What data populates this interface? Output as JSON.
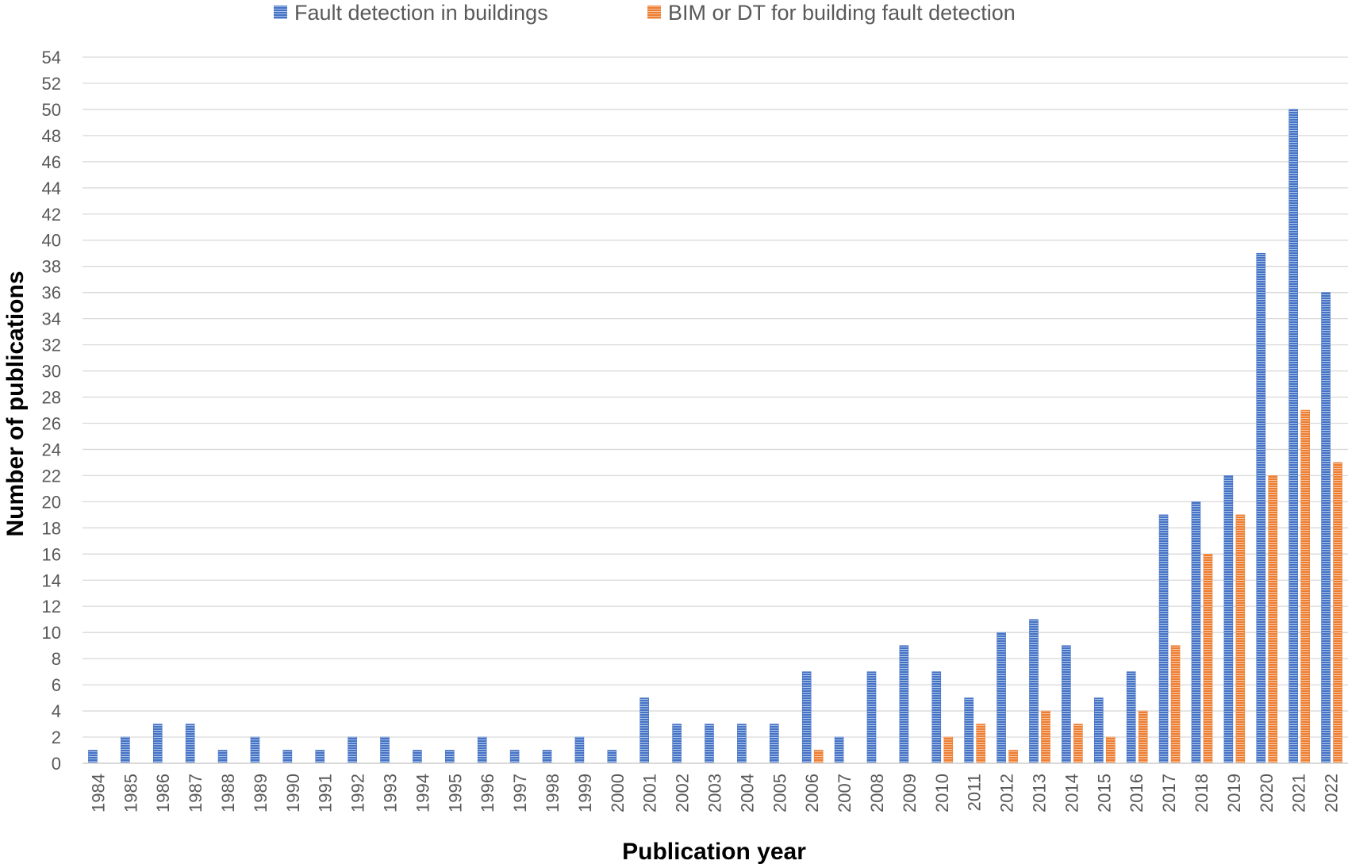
{
  "chart_data": {
    "type": "bar",
    "title": "",
    "xlabel": "Publication year",
    "ylabel": "Number of publications",
    "ylim": [
      0,
      54
    ],
    "ytick_step": 2,
    "grid": true,
    "legend_position": "top-center",
    "categories": [
      "1984",
      "1985",
      "1986",
      "1987",
      "1988",
      "1989",
      "1990",
      "1991",
      "1992",
      "1993",
      "1994",
      "1995",
      "1996",
      "1997",
      "1998",
      "1999",
      "2000",
      "2001",
      "2002",
      "2003",
      "2004",
      "2005",
      "2006",
      "2007",
      "2008",
      "2009",
      "2010",
      "2011",
      "2012",
      "2013",
      "2014",
      "2015",
      "2016",
      "2017",
      "2018",
      "2019",
      "2020",
      "2021",
      "2022"
    ],
    "series": [
      {
        "name": "Fault detection in buildings",
        "color": "#4472C4",
        "values": [
          1,
          2,
          3,
          3,
          1,
          2,
          1,
          1,
          2,
          2,
          1,
          1,
          2,
          1,
          1,
          2,
          1,
          5,
          3,
          3,
          3,
          3,
          7,
          2,
          7,
          9,
          7,
          5,
          10,
          11,
          9,
          5,
          7,
          19,
          20,
          22,
          39,
          50,
          36
        ]
      },
      {
        "name": "BIM or DT for building fault detection",
        "color": "#ED7D31",
        "values": [
          0,
          0,
          0,
          0,
          0,
          0,
          0,
          0,
          0,
          0,
          0,
          0,
          0,
          0,
          0,
          0,
          0,
          0,
          0,
          0,
          0,
          0,
          1,
          0,
          0,
          0,
          2,
          3,
          1,
          4,
          3,
          2,
          4,
          9,
          16,
          19,
          22,
          27,
          23
        ]
      }
    ]
  }
}
